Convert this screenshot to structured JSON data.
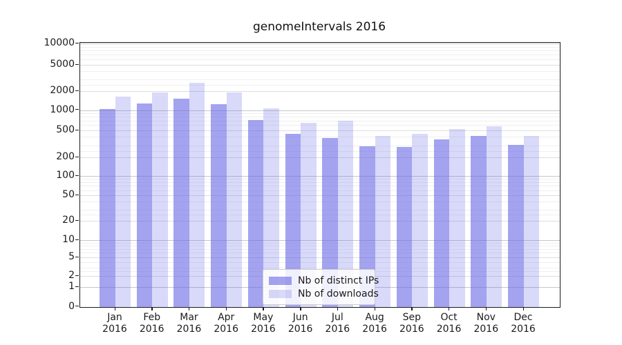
{
  "title": "genomeIntervals 2016",
  "legend": {
    "items": [
      {
        "label": "Nb of distinct IPs",
        "color": "rgba(102,102,230,0.6)"
      },
      {
        "label": "Nb of downloads",
        "color": "rgba(102,102,230,0.25)"
      }
    ]
  },
  "chart_data": {
    "type": "bar",
    "title": "genomeIntervals 2016",
    "xlabel": "",
    "ylabel": "",
    "y_scale": "log (symlog, linear below 1)",
    "grid": "on",
    "legend_position": "lower center inside plot",
    "categories": [
      "Jan",
      "Feb",
      "Mar",
      "Apr",
      "May",
      "Jun",
      "Jul",
      "Aug",
      "Sep",
      "Oct",
      "Nov",
      "Dec"
    ],
    "category_year": "2016",
    "y_ticks": [
      0,
      1,
      2,
      5,
      10,
      20,
      50,
      100,
      200,
      500,
      1000,
      2000,
      5000,
      10000
    ],
    "y_tick_labels": [
      "0",
      "1",
      "2",
      "5",
      "10",
      "20",
      "50",
      "100",
      "200",
      "500",
      "1000",
      "2000",
      "5000",
      "10000"
    ],
    "ylim": [
      0,
      10000
    ],
    "series": [
      {
        "name": "Nb of distinct IPs",
        "color": "rgba(102,102,230,0.6)",
        "values": [
          1050,
          1270,
          1530,
          1240,
          710,
          445,
          390,
          290,
          283,
          370,
          410,
          308
        ]
      },
      {
        "name": "Nb of downloads",
        "color": "rgba(102,102,230,0.25)",
        "values": [
          1650,
          1900,
          2700,
          1890,
          1060,
          650,
          690,
          410,
          445,
          520,
          570,
          410
        ]
      }
    ],
    "colors": {
      "bar_base": "#6666e6",
      "axis": "#1a1a1a",
      "grid_decade": "#c6c6c6",
      "grid_major": "#dddddd",
      "grid_minor": "#efefef"
    }
  }
}
